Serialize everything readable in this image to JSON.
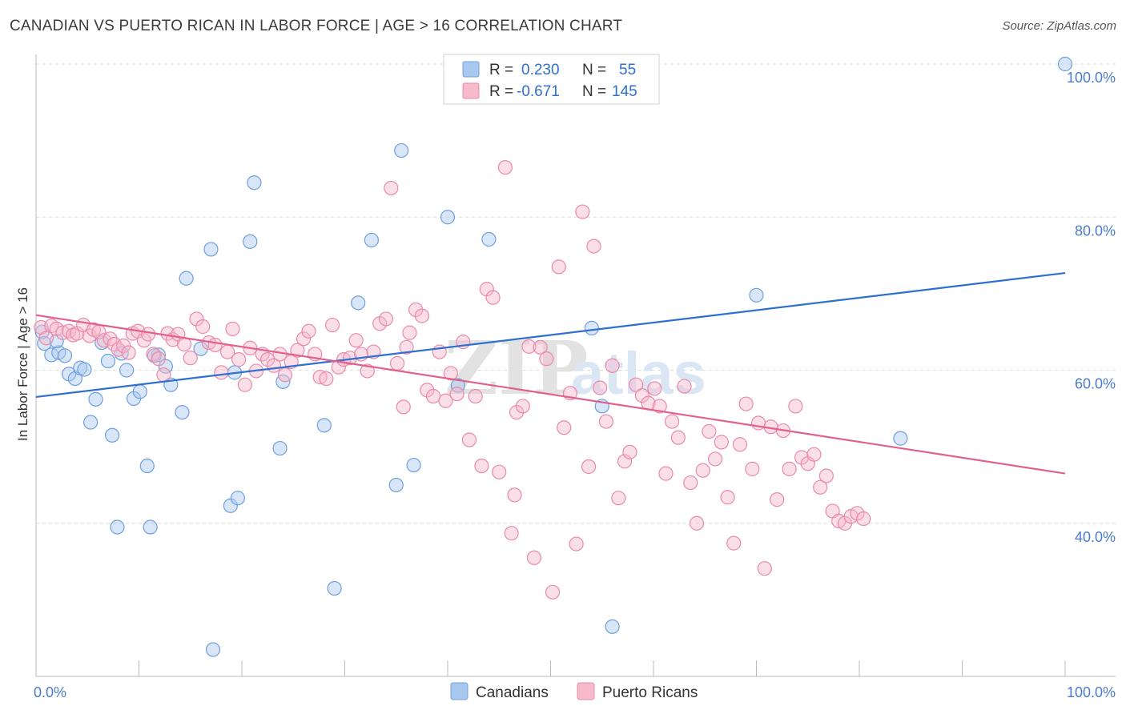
{
  "title": "CANADIAN VS PUERTO RICAN IN LABOR FORCE | AGE > 16 CORRELATION CHART",
  "source": "Source: ZipAtlas.com",
  "watermark": {
    "zip": "ZIP",
    "atlas": "atlas"
  },
  "chart_data": {
    "type": "scatter",
    "ylabel": "In Labor Force | Age > 16",
    "xlim": [
      0,
      100
    ],
    "ylim": [
      20,
      100
    ],
    "x_tick_labels": [
      "0.0%",
      "100.0%"
    ],
    "y_ticks": [
      {
        "value": 40,
        "label": "40.0%"
      },
      {
        "value": 60,
        "label": "60.0%"
      },
      {
        "value": 80,
        "label": "80.0%"
      },
      {
        "value": 100,
        "label": "100.0%"
      }
    ],
    "legend": {
      "r_label": "R =",
      "n_label": "N =",
      "entries": [
        {
          "r": "0.230",
          "n": "55",
          "color": "#a9c8f0",
          "stroke": "#6f9fe0"
        },
        {
          "r": "-0.671",
          "n": "145",
          "color": "#f7b9cc",
          "stroke": "#e98aa8"
        }
      ]
    },
    "series": [
      {
        "name": "Canadians",
        "color": "#a9c8f0",
        "stroke": "#6f9fe0",
        "line_color": "#2f6fd0",
        "trend": [
          [
            0,
            56.5
          ],
          [
            100,
            72.7
          ]
        ],
        "points": [
          [
            0.6,
            65.0
          ],
          [
            0.8,
            63.5
          ],
          [
            1.5,
            62.0
          ],
          [
            2.2,
            62.3
          ],
          [
            2.8,
            61.9
          ],
          [
            3.2,
            59.5
          ],
          [
            3.8,
            58.9
          ],
          [
            4.3,
            60.3
          ],
          [
            4.7,
            60.1
          ],
          [
            5.3,
            53.2
          ],
          [
            5.8,
            56.2
          ],
          [
            6.4,
            63.6
          ],
          [
            7.0,
            61.2
          ],
          [
            7.4,
            51.5
          ],
          [
            7.9,
            39.5
          ],
          [
            8.3,
            62.2
          ],
          [
            8.8,
            60.0
          ],
          [
            9.5,
            56.3
          ],
          [
            10.1,
            57.2
          ],
          [
            10.8,
            47.5
          ],
          [
            11.1,
            39.5
          ],
          [
            11.9,
            62.0
          ],
          [
            12.6,
            60.5
          ],
          [
            13.1,
            58.1
          ],
          [
            14.2,
            54.5
          ],
          [
            14.6,
            72.0
          ],
          [
            16.0,
            62.8
          ],
          [
            17.0,
            75.8
          ],
          [
            18.9,
            42.3
          ],
          [
            19.3,
            59.7
          ],
          [
            19.6,
            43.3
          ],
          [
            20.8,
            76.8
          ],
          [
            21.2,
            84.5
          ],
          [
            23.7,
            49.8
          ],
          [
            24.0,
            58.5
          ],
          [
            28.0,
            52.8
          ],
          [
            29.0,
            31.5
          ],
          [
            31.3,
            68.8
          ],
          [
            32.6,
            77.0
          ],
          [
            35.0,
            45.0
          ],
          [
            35.5,
            88.7
          ],
          [
            36.7,
            47.6
          ],
          [
            40.0,
            80.0
          ],
          [
            41.0,
            58.0
          ],
          [
            44.0,
            77.1
          ],
          [
            48.0,
            100.0
          ],
          [
            54.0,
            65.5
          ],
          [
            55.0,
            55.3
          ],
          [
            56.0,
            26.5
          ],
          [
            70.0,
            69.8
          ],
          [
            84.0,
            51.1
          ],
          [
            100.0,
            100.0
          ],
          [
            17.2,
            23.5
          ],
          [
            11.5,
            61.9
          ],
          [
            2.0,
            63.8
          ]
        ]
      },
      {
        "name": "Puerto Ricans",
        "color": "#f7b9cc",
        "stroke": "#e98aa8",
        "line_color": "#e0608e",
        "trend": [
          [
            0,
            67.2
          ],
          [
            100,
            46.5
          ]
        ],
        "points": [
          [
            0.5,
            65.6
          ],
          [
            1.0,
            64.2
          ],
          [
            1.5,
            65.8
          ],
          [
            2.0,
            65.4
          ],
          [
            2.6,
            64.9
          ],
          [
            3.2,
            65.1
          ],
          [
            3.6,
            64.6
          ],
          [
            4.0,
            64.8
          ],
          [
            4.6,
            65.9
          ],
          [
            5.2,
            64.5
          ],
          [
            5.6,
            65.3
          ],
          [
            6.1,
            65.0
          ],
          [
            6.6,
            63.9
          ],
          [
            7.2,
            64.1
          ],
          [
            7.6,
            63.4
          ],
          [
            8.0,
            62.7
          ],
          [
            8.5,
            63.2
          ],
          [
            9.0,
            62.3
          ],
          [
            9.4,
            64.8
          ],
          [
            9.9,
            65.1
          ],
          [
            10.5,
            63.9
          ],
          [
            10.9,
            64.7
          ],
          [
            11.4,
            62.1
          ],
          [
            11.9,
            61.5
          ],
          [
            12.4,
            59.4
          ],
          [
            12.8,
            64.8
          ],
          [
            13.3,
            64.0
          ],
          [
            13.8,
            64.7
          ],
          [
            14.4,
            63.4
          ],
          [
            15.0,
            61.6
          ],
          [
            15.6,
            66.7
          ],
          [
            16.2,
            65.7
          ],
          [
            16.8,
            63.6
          ],
          [
            17.4,
            63.3
          ],
          [
            18.0,
            59.7
          ],
          [
            18.6,
            62.4
          ],
          [
            19.1,
            65.4
          ],
          [
            19.7,
            61.4
          ],
          [
            20.3,
            58.1
          ],
          [
            20.8,
            62.9
          ],
          [
            21.4,
            59.9
          ],
          [
            22.0,
            62.1
          ],
          [
            22.5,
            61.4
          ],
          [
            23.1,
            60.6
          ],
          [
            23.7,
            62.1
          ],
          [
            24.2,
            59.4
          ],
          [
            24.8,
            61.1
          ],
          [
            25.4,
            62.6
          ],
          [
            26.0,
            64.1
          ],
          [
            26.5,
            65.1
          ],
          [
            27.1,
            62.1
          ],
          [
            27.6,
            59.1
          ],
          [
            28.2,
            58.9
          ],
          [
            28.8,
            65.9
          ],
          [
            29.4,
            60.4
          ],
          [
            29.9,
            61.4
          ],
          [
            30.5,
            61.6
          ],
          [
            31.1,
            63.9
          ],
          [
            31.6,
            62.1
          ],
          [
            32.2,
            59.9
          ],
          [
            32.8,
            62.4
          ],
          [
            33.4,
            66.1
          ],
          [
            34.0,
            66.7
          ],
          [
            34.5,
            83.8
          ],
          [
            35.1,
            60.9
          ],
          [
            35.7,
            55.2
          ],
          [
            36.3,
            64.9
          ],
          [
            36.9,
            67.9
          ],
          [
            37.5,
            67.1
          ],
          [
            38.0,
            57.4
          ],
          [
            38.6,
            56.6
          ],
          [
            39.2,
            62.4
          ],
          [
            39.8,
            56.0
          ],
          [
            40.3,
            59.6
          ],
          [
            40.9,
            56.9
          ],
          [
            41.5,
            63.7
          ],
          [
            42.1,
            50.9
          ],
          [
            42.7,
            56.6
          ],
          [
            43.3,
            47.5
          ],
          [
            43.8,
            70.6
          ],
          [
            44.4,
            69.5
          ],
          [
            45.0,
            46.7
          ],
          [
            45.6,
            86.5
          ],
          [
            46.2,
            38.7
          ],
          [
            46.7,
            54.5
          ],
          [
            47.3,
            55.3
          ],
          [
            47.9,
            63.1
          ],
          [
            48.4,
            35.5
          ],
          [
            49.0,
            63.0
          ],
          [
            49.6,
            61.5
          ],
          [
            50.2,
            31.0
          ],
          [
            50.8,
            73.5
          ],
          [
            51.3,
            52.5
          ],
          [
            51.9,
            57.0
          ],
          [
            52.5,
            37.3
          ],
          [
            53.1,
            80.7
          ],
          [
            53.7,
            47.4
          ],
          [
            54.2,
            76.2
          ],
          [
            54.8,
            57.7
          ],
          [
            55.4,
            53.3
          ],
          [
            56.0,
            60.6
          ],
          [
            56.6,
            43.3
          ],
          [
            57.2,
            48.1
          ],
          [
            57.7,
            49.3
          ],
          [
            58.3,
            58.1
          ],
          [
            58.9,
            56.7
          ],
          [
            59.5,
            55.7
          ],
          [
            60.1,
            57.6
          ],
          [
            60.6,
            55.3
          ],
          [
            61.2,
            46.5
          ],
          [
            61.8,
            53.3
          ],
          [
            62.4,
            51.2
          ],
          [
            63.0,
            57.9
          ],
          [
            63.6,
            45.3
          ],
          [
            64.2,
            40.0
          ],
          [
            64.8,
            46.9
          ],
          [
            65.4,
            52.0
          ],
          [
            66.0,
            48.4
          ],
          [
            66.6,
            50.6
          ],
          [
            67.2,
            43.4
          ],
          [
            67.8,
            37.4
          ],
          [
            68.4,
            50.3
          ],
          [
            69.0,
            55.6
          ],
          [
            69.6,
            47.1
          ],
          [
            70.2,
            53.1
          ],
          [
            70.8,
            34.1
          ],
          [
            71.4,
            52.6
          ],
          [
            72.0,
            43.1
          ],
          [
            72.6,
            52.1
          ],
          [
            73.2,
            47.1
          ],
          [
            73.8,
            55.3
          ],
          [
            74.4,
            48.6
          ],
          [
            75.0,
            47.8
          ],
          [
            75.6,
            49.0
          ],
          [
            76.2,
            44.7
          ],
          [
            76.8,
            46.2
          ],
          [
            77.4,
            41.6
          ],
          [
            78.0,
            40.3
          ],
          [
            78.6,
            40.0
          ],
          [
            79.2,
            40.9
          ],
          [
            79.8,
            41.3
          ],
          [
            80.4,
            40.6
          ],
          [
            46.5,
            43.7
          ],
          [
            36.0,
            63.0
          ]
        ]
      }
    ]
  },
  "bottom_legend": [
    "Canadians",
    "Puerto Ricans"
  ]
}
